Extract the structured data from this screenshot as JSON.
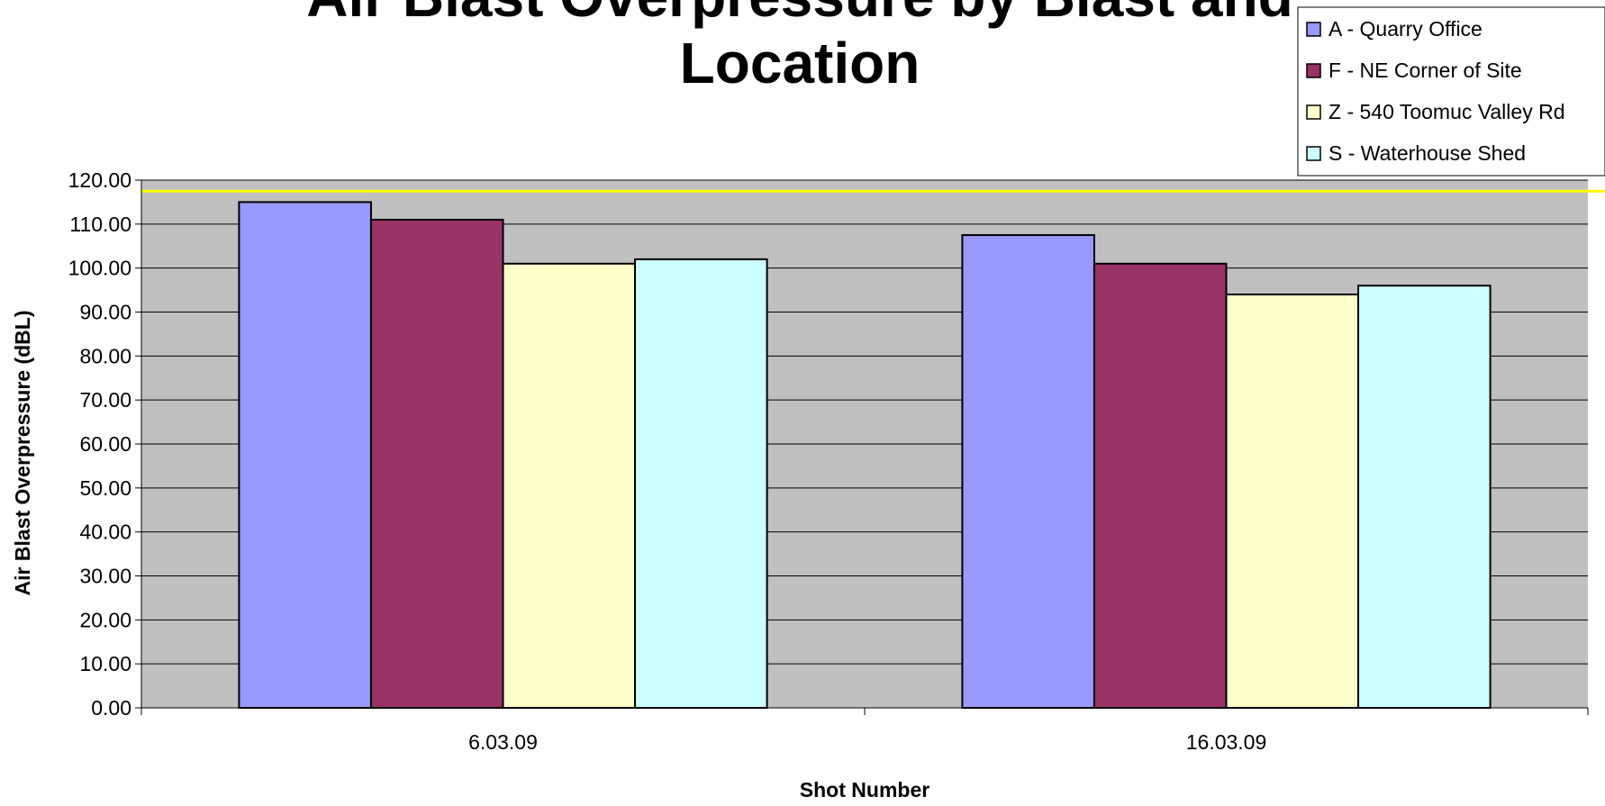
{
  "chart_data": {
    "type": "bar",
    "title_lines": [
      "Air Blast Overpressure by Blast and",
      "Location"
    ],
    "xlabel": "Shot Number",
    "ylabel": "Air Blast Overpressure (dBL)",
    "categories": [
      "6.03.09",
      "16.03.09"
    ],
    "ylim": [
      0,
      120
    ],
    "ytick_step": 10,
    "ytick_decimals": 2,
    "grid": true,
    "legend_position": "top-right",
    "reference_line": {
      "value": 117.5,
      "color": "#ffff00"
    },
    "plot_background": "#c0c0c0",
    "series": [
      {
        "name": "A - Quarry Office",
        "values": [
          115,
          107.5
        ],
        "color": "#9999ff"
      },
      {
        "name": "F - NE Corner of Site",
        "values": [
          111,
          101
        ],
        "color": "#993366"
      },
      {
        "name": "Z - 540 Toomuc Valley Rd",
        "values": [
          101,
          94
        ],
        "color": "#ffffcc"
      },
      {
        "name": "S - Waterhouse Shed",
        "values": [
          102,
          96
        ],
        "color": "#ccffff"
      }
    ]
  }
}
